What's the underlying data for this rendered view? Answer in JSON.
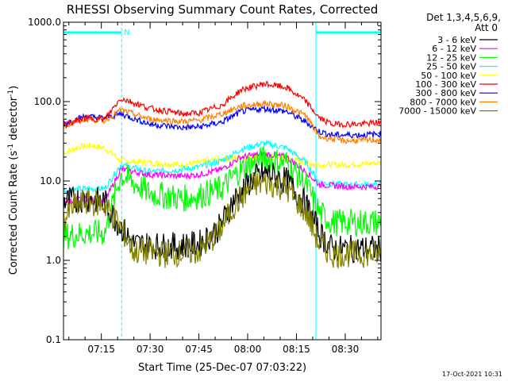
{
  "chart_data": {
    "type": "line",
    "title": "RHESSI Observing Summary Count Rates, Corrected",
    "xlabel": "Start Time (25-Dec-07 07:03:22)",
    "ylabel": "Corrected Count Rate (s",
    "ylabel_sup1": "-1",
    "ylabel_mid": " detector",
    "ylabel_sup2": "-1",
    "ylabel_end": ")",
    "yscale": "log",
    "ylim": [
      0.1,
      1000
    ],
    "xlim": [
      "07:03:22",
      "08:41:00"
    ],
    "x_ticks": [
      "07:15",
      "07:30",
      "07:45",
      "08:00",
      "08:15",
      "08:30"
    ],
    "y_ticks": [
      "0.1",
      "1.0",
      "10.0",
      "100.0",
      "1000.0"
    ],
    "legend_header": [
      "Det 1,3,4,5,6,9,",
      "Att 0"
    ],
    "legend_position": "right",
    "date_stamp": "17-Oct-2021 10:31",
    "night_flag_label": "N",
    "night_intervals": [
      [
        "07:03:22",
        "07:21:15"
      ],
      [
        "08:21:00",
        "08:41:00"
      ]
    ],
    "series": [
      {
        "name": "3 - 6 keV",
        "color": "#000000",
        "points": [
          [
            "07:03",
            5.5
          ],
          [
            "07:10",
            6
          ],
          [
            "07:16",
            5.5
          ],
          [
            "07:20",
            3
          ],
          [
            "07:25",
            1.6
          ],
          [
            "07:35",
            1.5
          ],
          [
            "07:45",
            1.6
          ],
          [
            "07:51",
            2.5
          ],
          [
            "07:56",
            6
          ],
          [
            "08:02",
            11
          ],
          [
            "08:06",
            12.5
          ],
          [
            "08:12",
            10
          ],
          [
            "08:18",
            5
          ],
          [
            "08:22",
            2.2
          ],
          [
            "08:26",
            1.4
          ],
          [
            "08:35",
            1.4
          ],
          [
            "08:41",
            1.4
          ]
        ]
      },
      {
        "name": "6 - 12 keV",
        "color": "#ff00ff",
        "points": [
          [
            "07:03",
            5.5
          ],
          [
            "07:10",
            6
          ],
          [
            "07:16",
            5.5
          ],
          [
            "07:21",
            14
          ],
          [
            "07:30",
            12
          ],
          [
            "07:40",
            11.5
          ],
          [
            "07:45",
            12
          ],
          [
            "07:52",
            14
          ],
          [
            "07:58",
            20
          ],
          [
            "08:05",
            22
          ],
          [
            "08:12",
            20
          ],
          [
            "08:18",
            13
          ],
          [
            "08:22",
            9
          ],
          [
            "08:30",
            8.5
          ],
          [
            "08:41",
            8.5
          ]
        ]
      },
      {
        "name": "12 - 25 keV",
        "color": "#00ff00",
        "points": [
          [
            "07:03",
            2
          ],
          [
            "07:10",
            2.2
          ],
          [
            "07:16",
            2.2
          ],
          [
            "07:21",
            12
          ],
          [
            "07:30",
            7
          ],
          [
            "07:40",
            6
          ],
          [
            "07:45",
            6.5
          ],
          [
            "07:52",
            8
          ],
          [
            "07:58",
            14
          ],
          [
            "08:05",
            19
          ],
          [
            "08:12",
            17
          ],
          [
            "08:18",
            9
          ],
          [
            "08:22",
            4
          ],
          [
            "08:26",
            3
          ],
          [
            "08:41",
            3
          ]
        ]
      },
      {
        "name": "25 - 50 keV",
        "color": "#00ffff",
        "points": [
          [
            "07:03",
            7.5
          ],
          [
            "07:10",
            8
          ],
          [
            "07:16",
            8
          ],
          [
            "07:21",
            16
          ],
          [
            "07:30",
            13
          ],
          [
            "07:40",
            14
          ],
          [
            "07:45",
            15
          ],
          [
            "07:52",
            18
          ],
          [
            "07:58",
            25
          ],
          [
            "08:05",
            30
          ],
          [
            "08:12",
            26
          ],
          [
            "08:18",
            17
          ],
          [
            "08:22",
            9.5
          ],
          [
            "08:30",
            9
          ],
          [
            "08:41",
            9
          ]
        ]
      },
      {
        "name": "50 - 100 keV",
        "color": "#ffff00",
        "points": [
          [
            "07:03",
            22
          ],
          [
            "07:08",
            27
          ],
          [
            "07:12",
            28
          ],
          [
            "07:16",
            26
          ],
          [
            "07:21",
            18
          ],
          [
            "07:30",
            17
          ],
          [
            "07:40",
            16
          ],
          [
            "07:45",
            17
          ],
          [
            "07:52",
            19
          ],
          [
            "07:58",
            20
          ],
          [
            "08:05",
            20
          ],
          [
            "08:12",
            19
          ],
          [
            "08:18",
            17
          ],
          [
            "08:22",
            16
          ],
          [
            "08:30",
            16
          ],
          [
            "08:41",
            17
          ]
        ]
      },
      {
        "name": "100 - 300 keV",
        "color": "#ff0000",
        "points": [
          [
            "07:03",
            50
          ],
          [
            "07:10",
            62
          ],
          [
            "07:16",
            60
          ],
          [
            "07:21",
            110
          ],
          [
            "07:30",
            82
          ],
          [
            "07:40",
            70
          ],
          [
            "07:45",
            72
          ],
          [
            "07:52",
            90
          ],
          [
            "07:58",
            140
          ],
          [
            "08:05",
            168
          ],
          [
            "08:12",
            150
          ],
          [
            "08:18",
            100
          ],
          [
            "08:22",
            62
          ],
          [
            "08:26",
            52
          ],
          [
            "08:35",
            52
          ],
          [
            "08:41",
            55
          ]
        ]
      },
      {
        "name": "300 - 800 keV",
        "color": "#0000ff",
        "points": [
          [
            "07:03",
            52
          ],
          [
            "07:10",
            65
          ],
          [
            "07:16",
            62
          ],
          [
            "07:21",
            70
          ],
          [
            "07:30",
            52
          ],
          [
            "07:40",
            47
          ],
          [
            "07:45",
            48
          ],
          [
            "07:52",
            55
          ],
          [
            "07:58",
            75
          ],
          [
            "08:05",
            82
          ],
          [
            "08:12",
            75
          ],
          [
            "08:18",
            55
          ],
          [
            "08:22",
            42
          ],
          [
            "08:26",
            38
          ],
          [
            "08:35",
            38
          ],
          [
            "08:41",
            39
          ]
        ]
      },
      {
        "name": "800 - 7000 keV",
        "color": "#ff8000",
        "points": [
          [
            "07:03",
            48
          ],
          [
            "07:10",
            60
          ],
          [
            "07:16",
            58
          ],
          [
            "07:21",
            78
          ],
          [
            "07:30",
            60
          ],
          [
            "07:40",
            56
          ],
          [
            "07:45",
            58
          ],
          [
            "07:52",
            70
          ],
          [
            "07:58",
            88
          ],
          [
            "08:05",
            95
          ],
          [
            "08:12",
            88
          ],
          [
            "08:18",
            66
          ],
          [
            "08:22",
            36
          ],
          [
            "08:30",
            32
          ],
          [
            "08:41",
            33
          ]
        ]
      },
      {
        "name": "7000 - 15000 keV",
        "color": "#808000",
        "points": [
          [
            "07:03",
            3
          ],
          [
            "07:06",
            4.5
          ],
          [
            "07:10",
            5.5
          ],
          [
            "07:16",
            5
          ],
          [
            "07:20",
            3
          ],
          [
            "07:25",
            1.3
          ],
          [
            "07:35",
            1.2
          ],
          [
            "07:45",
            1.3
          ],
          [
            "07:51",
            2.2
          ],
          [
            "07:56",
            5
          ],
          [
            "08:02",
            9
          ],
          [
            "08:06",
            9.5
          ],
          [
            "08:12",
            8
          ],
          [
            "08:18",
            4
          ],
          [
            "08:22",
            1.6
          ],
          [
            "08:26",
            1.2
          ],
          [
            "08:35",
            1.2
          ],
          [
            "08:41",
            1.2
          ]
        ]
      }
    ]
  }
}
